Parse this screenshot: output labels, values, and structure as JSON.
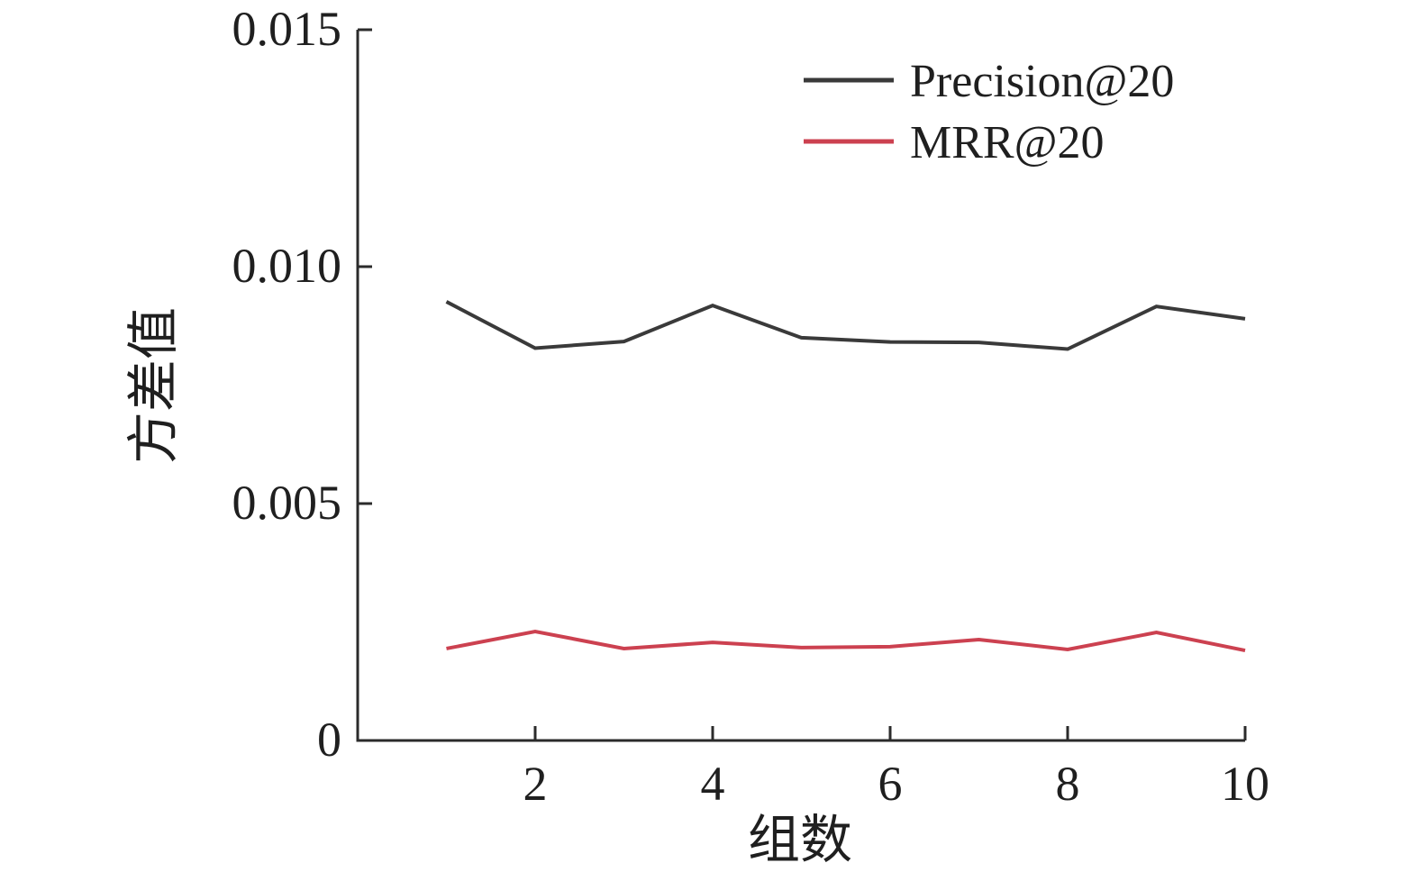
{
  "figure": {
    "background": "#ffffff",
    "axis_color": "#2b2b2b"
  },
  "chart_data": {
    "type": "line",
    "x": [
      1,
      2,
      3,
      4,
      5,
      6,
      7,
      8,
      9,
      10
    ],
    "series": [
      {
        "name": "Precision@20",
        "color": "#3a3a3a",
        "values": [
          0.00926,
          0.00828,
          0.00842,
          0.00918,
          0.0085,
          0.00841,
          0.0084,
          0.00826,
          0.00916,
          0.0089
        ]
      },
      {
        "name": "MRR@20",
        "color": "#cc4150",
        "values": [
          0.00194,
          0.0023,
          0.00194,
          0.00207,
          0.00196,
          0.00198,
          0.00213,
          0.00192,
          0.00228,
          0.0019
        ]
      }
    ],
    "xlabel": "组数",
    "ylabel": "方差值",
    "xlim": [
      0,
      10
    ],
    "ylim": [
      0,
      0.015
    ],
    "xticks": {
      "values": [
        2,
        4,
        6,
        8,
        10
      ],
      "labels": [
        "2",
        "4",
        "6",
        "8",
        "10"
      ]
    },
    "yticks": {
      "values": [
        0,
        0.005,
        0.01,
        0.015
      ],
      "labels": [
        "0",
        "0.005",
        "0.010",
        "0.015"
      ]
    },
    "grid": false,
    "legend_position": "upper-right"
  }
}
